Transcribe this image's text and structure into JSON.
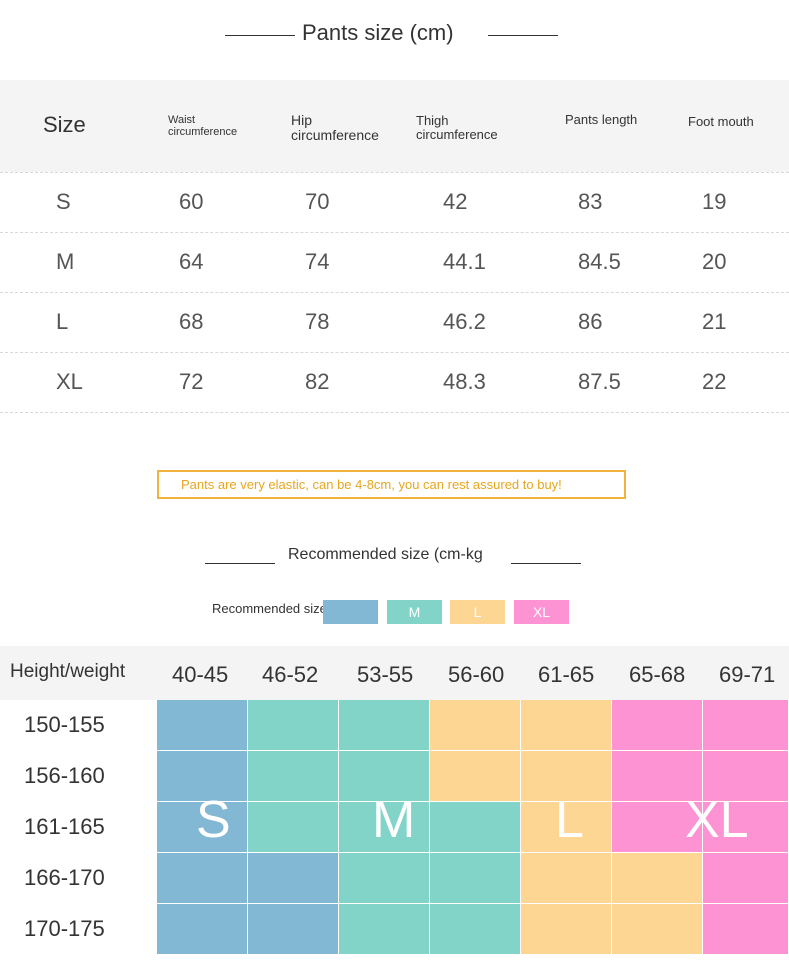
{
  "title": "Pants size (cm)",
  "size_table": {
    "headers": {
      "size": "Size",
      "waist": [
        "Waist",
        "circumference"
      ],
      "hip": [
        "Hip",
        "circumference"
      ],
      "thigh": [
        "Thigh",
        "circumference"
      ],
      "length": "Pants length",
      "foot": "Foot mouth"
    },
    "rows": [
      [
        "S",
        "60",
        "70",
        "42",
        "83",
        "19"
      ],
      [
        "M",
        "64",
        "74",
        "44.1",
        "84.5",
        "20"
      ],
      [
        "L",
        "68",
        "78",
        "46.2",
        "86",
        "21"
      ],
      [
        "XL",
        "72",
        "82",
        "48.3",
        "87.5",
        "22"
      ]
    ]
  },
  "note": "Pants are very elastic, can be 4-8cm, you can rest assured to buy!",
  "recommended_title": "Recommended size (cm-kg",
  "legend": {
    "label": "Recommended size: S",
    "chips": [
      {
        "text": "",
        "color": "#82b8d4"
      },
      {
        "text": "M",
        "color": "#82d4c9"
      },
      {
        "text": "L",
        "color": "#fdd694"
      },
      {
        "text": "XL",
        "color": "#fd93d3"
      }
    ]
  },
  "colors": {
    "S": "#82b8d4",
    "M": "#82d4c9",
    "L": "#fdd694",
    "XL": "#fd93d3",
    "note": "#f0b23a"
  },
  "grid": {
    "corner": "Height/weight",
    "weights": [
      "40-45",
      "46-52",
      "53-55",
      "56-60",
      "61-65",
      "65-68",
      "69-71"
    ],
    "heights": [
      "150-155",
      "156-160",
      "161-165",
      "166-170",
      "170-175"
    ],
    "cells": [
      [
        "S",
        "M",
        "M",
        "L",
        "L",
        "XL",
        "XL"
      ],
      [
        "S",
        "M",
        "M",
        "L",
        "L",
        "XL",
        "XL"
      ],
      [
        "S",
        "M",
        "M",
        "M",
        "L",
        "XL",
        "XL"
      ],
      [
        "S",
        "S",
        "M",
        "M",
        "L",
        "L",
        "XL"
      ],
      [
        "S",
        "S",
        "M",
        "M",
        "L",
        "L",
        "XL"
      ]
    ],
    "labels": [
      "S",
      "M",
      "L",
      "XL"
    ]
  }
}
